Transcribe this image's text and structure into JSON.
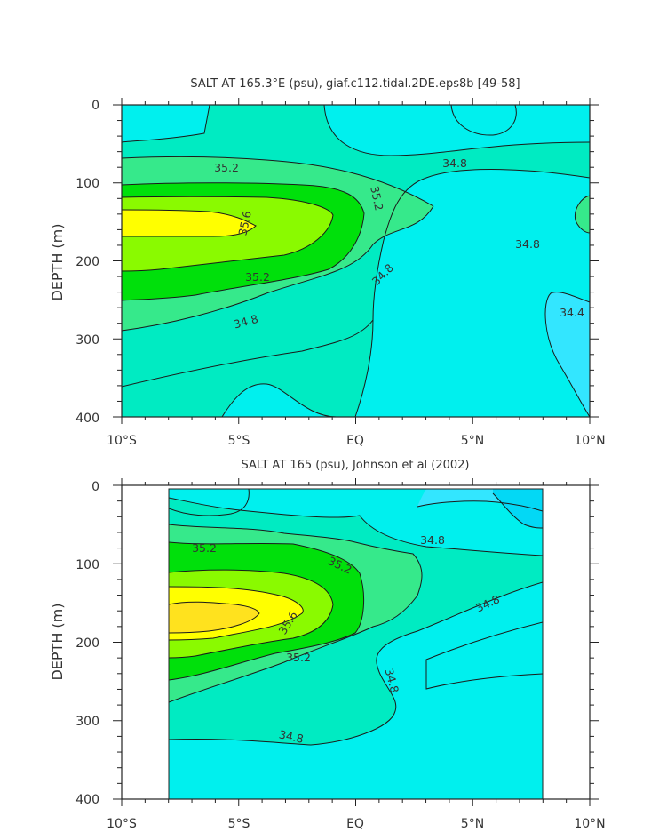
{
  "colors": {
    "sal_34_2": "#03d8f5",
    "sal_34_4": "#33e6ff",
    "sal_34_6": "#00f0ee",
    "sal_34_8": "#00ebc2",
    "sal_35_0": "#36e98b",
    "sal_35_2": "#00e00b",
    "sal_35_4": "#8afa00",
    "sal_35_6": "#ffff00",
    "sal_35_8": "#ffe21e",
    "contour_line": "#1a1a1a"
  },
  "chart_data": [
    {
      "type": "contour",
      "title": "SALT AT 165.3°E (psu), giaf.c112.tidal.2DE.eps8b [49-58]",
      "xlabel": "",
      "ylabel": "DEPTH (m)",
      "x_tick_labels": [
        "10°S",
        "5°S",
        "EQ",
        "5°N",
        "10°N"
      ],
      "x_range_deg_lat": [
        -10,
        10
      ],
      "y_tick_labels": [
        "0",
        "100",
        "200",
        "300",
        "400"
      ],
      "y_range_m": [
        0,
        400
      ],
      "y_inverted": true,
      "data_coverage_lat": [
        -10,
        10
      ],
      "contour_interval": 0.2,
      "contour_labels": [
        "35.2",
        "34.8",
        "35.6",
        "35.2",
        "34.8",
        "35.2",
        "34.8",
        "34.8",
        "34.4"
      ],
      "grid": false,
      "features": "Salinity maximum core >35.6 psu near 150 m depth, 10°S–7°S; fresher <34.6 psu water below 250 m north of the equator; fresher surface water near 5°N."
    },
    {
      "type": "contour",
      "title": "SALT AT 165 (psu), Johnson et al (2002)",
      "xlabel": "",
      "ylabel": "DEPTH (m)",
      "x_tick_labels": [
        "10°S",
        "5°S",
        "EQ",
        "5°N",
        "10°N"
      ],
      "x_range_deg_lat": [
        -10,
        10
      ],
      "y_tick_labels": [
        "0",
        "100",
        "200",
        "300",
        "400"
      ],
      "y_range_m": [
        0,
        400
      ],
      "y_inverted": true,
      "data_coverage_lat": [
        -8,
        8
      ],
      "data_coverage_depth_m": [
        5,
        400
      ],
      "contour_interval": 0.2,
      "contour_labels": [
        "35.2",
        "34.8",
        "35.2",
        "34.8",
        "35.6",
        "35.2",
        "34.8",
        "34.8"
      ],
      "grid": false,
      "features": "Observed salinity maximum >35.8 psu near 180 m, 8°S–6°S; fresh surface water <34.4 psu near 5°N–8°N; fresher water below 230 m north of 2°N."
    }
  ]
}
